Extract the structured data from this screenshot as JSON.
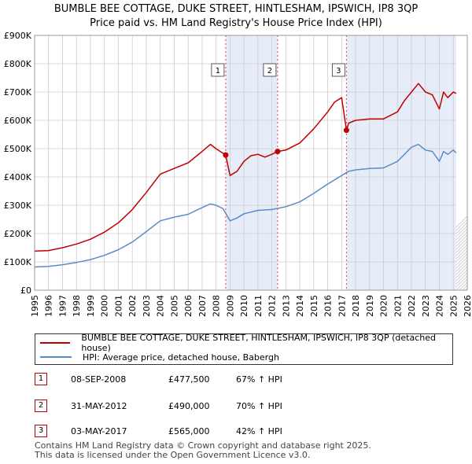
{
  "chart_data": {
    "type": "line",
    "title": "BUMBLE BEE COTTAGE, DUKE STREET, HINTLESHAM, IPSWICH, IP8 3QP",
    "subtitle": "Price paid vs. HM Land Registry's House Price Index (HPI)",
    "xlim": [
      1995,
      2026
    ],
    "ylim": [
      0,
      900000
    ],
    "x_ticks": [
      "1995",
      "1996",
      "1997",
      "1998",
      "1999",
      "2000",
      "2001",
      "2002",
      "2003",
      "2004",
      "2005",
      "2006",
      "2007",
      "2008",
      "2009",
      "2010",
      "2011",
      "2012",
      "2013",
      "2014",
      "2015",
      "2016",
      "2017",
      "2018",
      "2019",
      "2020",
      "2021",
      "2022",
      "2023",
      "2024",
      "2025",
      "2026"
    ],
    "y_ticks": [
      {
        "value": 0,
        "label": "£0"
      },
      {
        "value": 100000,
        "label": "£100K"
      },
      {
        "value": 200000,
        "label": "£200K"
      },
      {
        "value": 300000,
        "label": "£300K"
      },
      {
        "value": 400000,
        "label": "£400K"
      },
      {
        "value": 500000,
        "label": "£500K"
      },
      {
        "value": 600000,
        "label": "£600K"
      },
      {
        "value": 700000,
        "label": "£700K"
      },
      {
        "value": 800000,
        "label": "£800K"
      },
      {
        "value": 900000,
        "label": "£900K"
      }
    ],
    "series": [
      {
        "name": "BUMBLE BEE COTTAGE, DUKE STREET, HINTLESHAM, IPSWICH, IP8 3QP (detached house)",
        "color": "#c00000",
        "points": [
          [
            1995.0,
            138000
          ],
          [
            1996.0,
            140000
          ],
          [
            1997.0,
            150000
          ],
          [
            1998.0,
            163000
          ],
          [
            1999.0,
            180000
          ],
          [
            2000.0,
            205000
          ],
          [
            2001.0,
            238000
          ],
          [
            2002.0,
            285000
          ],
          [
            2003.0,
            345000
          ],
          [
            2004.0,
            410000
          ],
          [
            2005.0,
            430000
          ],
          [
            2006.0,
            450000
          ],
          [
            2007.0,
            490000
          ],
          [
            2007.6,
            515000
          ],
          [
            2008.0,
            500000
          ],
          [
            2008.69,
            477500
          ],
          [
            2009.0,
            405000
          ],
          [
            2009.5,
            420000
          ],
          [
            2010.0,
            455000
          ],
          [
            2010.5,
            475000
          ],
          [
            2011.0,
            480000
          ],
          [
            2011.5,
            470000
          ],
          [
            2012.0,
            480000
          ],
          [
            2012.41,
            490000
          ],
          [
            2013.0,
            495000
          ],
          [
            2014.0,
            520000
          ],
          [
            2015.0,
            570000
          ],
          [
            2016.0,
            630000
          ],
          [
            2016.5,
            665000
          ],
          [
            2017.0,
            680000
          ],
          [
            2017.34,
            565000
          ],
          [
            2017.5,
            590000
          ],
          [
            2018.0,
            600000
          ],
          [
            2019.0,
            605000
          ],
          [
            2020.0,
            605000
          ],
          [
            2021.0,
            630000
          ],
          [
            2021.5,
            670000
          ],
          [
            2022.0,
            700000
          ],
          [
            2022.5,
            730000
          ],
          [
            2023.0,
            700000
          ],
          [
            2023.5,
            690000
          ],
          [
            2024.0,
            640000
          ],
          [
            2024.3,
            700000
          ],
          [
            2024.6,
            680000
          ],
          [
            2025.0,
            700000
          ],
          [
            2025.2,
            695000
          ]
        ]
      },
      {
        "name": "HPI: Average price, detached house, Babergh",
        "color": "#5b8cc8",
        "points": [
          [
            1995.0,
            82000
          ],
          [
            1996.0,
            84000
          ],
          [
            1997.0,
            90000
          ],
          [
            1998.0,
            98000
          ],
          [
            1999.0,
            108000
          ],
          [
            2000.0,
            123000
          ],
          [
            2001.0,
            143000
          ],
          [
            2002.0,
            170000
          ],
          [
            2003.0,
            207000
          ],
          [
            2004.0,
            245000
          ],
          [
            2005.0,
            258000
          ],
          [
            2006.0,
            268000
          ],
          [
            2007.0,
            292000
          ],
          [
            2007.6,
            305000
          ],
          [
            2008.0,
            300000
          ],
          [
            2008.5,
            288000
          ],
          [
            2009.0,
            245000
          ],
          [
            2009.5,
            255000
          ],
          [
            2010.0,
            270000
          ],
          [
            2011.0,
            282000
          ],
          [
            2012.0,
            285000
          ],
          [
            2012.5,
            290000
          ],
          [
            2013.0,
            295000
          ],
          [
            2014.0,
            312000
          ],
          [
            2015.0,
            342000
          ],
          [
            2016.0,
            375000
          ],
          [
            2017.0,
            405000
          ],
          [
            2017.5,
            420000
          ],
          [
            2018.0,
            425000
          ],
          [
            2019.0,
            430000
          ],
          [
            2020.0,
            432000
          ],
          [
            2021.0,
            455000
          ],
          [
            2021.5,
            480000
          ],
          [
            2022.0,
            505000
          ],
          [
            2022.5,
            515000
          ],
          [
            2023.0,
            495000
          ],
          [
            2023.5,
            490000
          ],
          [
            2024.0,
            455000
          ],
          [
            2024.3,
            490000
          ],
          [
            2024.6,
            480000
          ],
          [
            2025.0,
            495000
          ],
          [
            2025.2,
            485000
          ]
        ]
      }
    ],
    "sales": [
      {
        "num": "1",
        "x": 2008.69,
        "value": 477500,
        "date": "08-SEP-2008",
        "price": "£477,500",
        "hpi": "67% ↑ HPI"
      },
      {
        "num": "2",
        "x": 2012.41,
        "value": 490000,
        "date": "31-MAY-2012",
        "price": "£490,000",
        "hpi": "70% ↑ HPI"
      },
      {
        "num": "3",
        "x": 2017.34,
        "value": 565000,
        "date": "03-MAY-2017",
        "price": "£565,000",
        "hpi": "42% ↑ HPI"
      }
    ],
    "forecast_from": 2025.2
  },
  "legend": {
    "property_label": "BUMBLE BEE COTTAGE, DUKE STREET, HINTLESHAM, IPSWICH, IP8 3QP (detached house)",
    "hpi_label": "HPI: Average price, detached house, Babergh"
  },
  "footer": {
    "line1": "Contains HM Land Registry data © Crown copyright and database right 2025.",
    "line2": "This data is licensed under the Open Government Licence v3.0."
  }
}
